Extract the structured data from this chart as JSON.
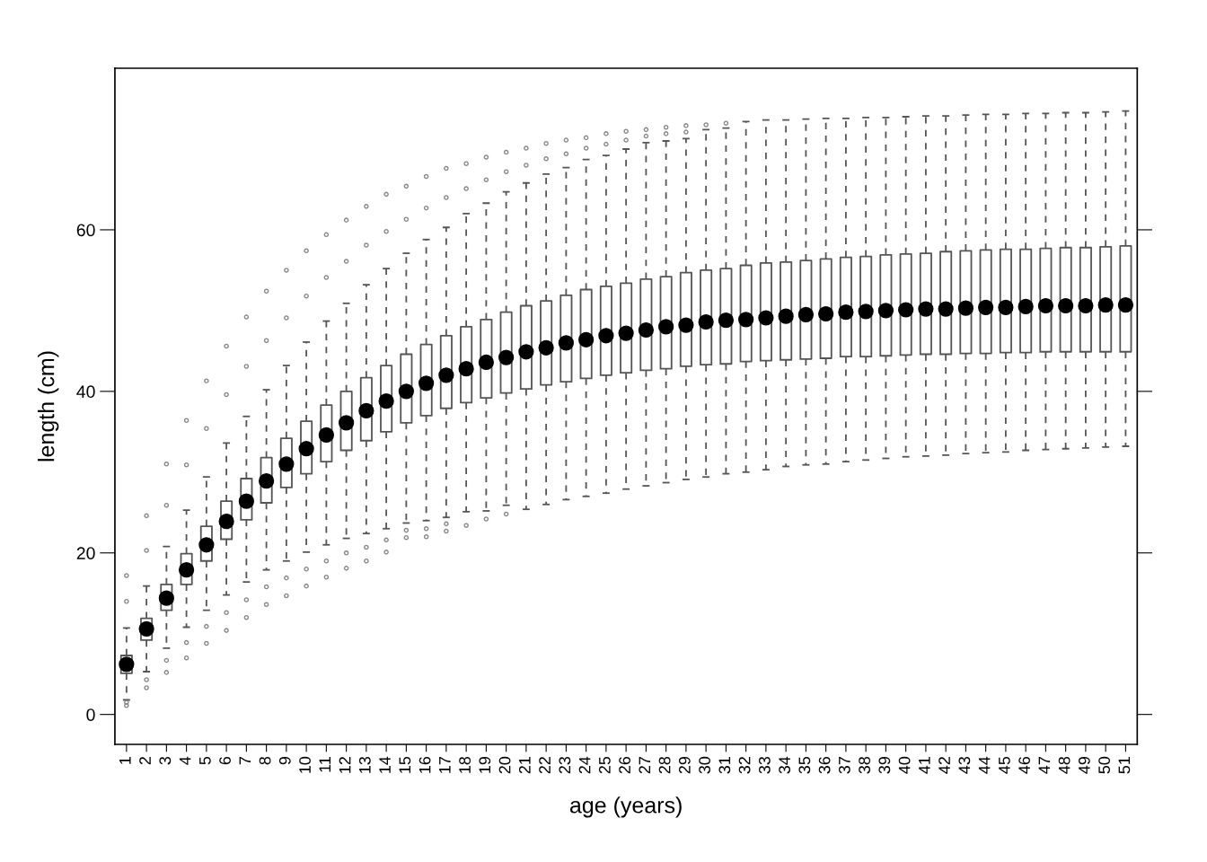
{
  "chart_data": {
    "type": "box",
    "xlabel": "age (years)",
    "ylabel": "length (cm)",
    "categories": [
      "1",
      "2",
      "3",
      "4",
      "5",
      "6",
      "7",
      "8",
      "9",
      "10",
      "11",
      "12",
      "13",
      "14",
      "15",
      "16",
      "17",
      "18",
      "19",
      "20",
      "21",
      "22",
      "23",
      "24",
      "25",
      "26",
      "27",
      "28",
      "29",
      "30",
      "31",
      "32",
      "33",
      "34",
      "35",
      "36",
      "37",
      "38",
      "39",
      "40",
      "41",
      "42",
      "43",
      "44",
      "45",
      "46",
      "47",
      "48",
      "49",
      "50",
      "51"
    ],
    "ylim": [
      -3.7,
      80
    ],
    "yticks": [
      0,
      20,
      40,
      60
    ],
    "grid": false,
    "series": [
      {
        "color": "#555555",
        "boxes": [
          {
            "low": 1.8,
            "q1": 5.1,
            "median": 6.2,
            "q3": 7.3,
            "high": 10.7,
            "outliers": [
              14.0,
              17.2,
              1.5,
              1.1
            ]
          },
          {
            "low": 5.3,
            "q1": 9.2,
            "median": 10.6,
            "q3": 11.9,
            "high": 15.9,
            "outliers": [
              20.3,
              24.6,
              4.3,
              3.3
            ]
          },
          {
            "low": 8.2,
            "q1": 12.9,
            "median": 14.4,
            "q3": 16.1,
            "high": 20.8,
            "outliers": [
              25.9,
              31.0,
              6.7,
              5.2
            ]
          },
          {
            "low": 10.8,
            "q1": 16.1,
            "median": 17.9,
            "q3": 19.9,
            "high": 25.3,
            "outliers": [
              30.9,
              36.4,
              8.9,
              7.0
            ]
          },
          {
            "low": 12.9,
            "q1": 19.0,
            "median": 21.0,
            "q3": 23.3,
            "high": 29.4,
            "outliers": [
              35.4,
              41.3,
              10.9,
              8.8
            ]
          },
          {
            "low": 14.8,
            "q1": 21.7,
            "median": 23.9,
            "q3": 26.4,
            "high": 33.6,
            "outliers": [
              39.6,
              45.6,
              12.6,
              10.4
            ]
          },
          {
            "low": 16.4,
            "q1": 24.1,
            "median": 26.4,
            "q3": 29.2,
            "high": 36.9,
            "outliers": [
              43.1,
              49.2,
              14.2,
              12.0
            ]
          },
          {
            "low": 17.9,
            "q1": 26.2,
            "median": 28.9,
            "q3": 31.8,
            "high": 40.2,
            "outliers": [
              46.3,
              52.4,
              15.8,
              13.6
            ]
          },
          {
            "low": 19.0,
            "q1": 28.1,
            "median": 31.0,
            "q3": 34.2,
            "high": 43.2,
            "outliers": [
              49.1,
              55.0,
              16.9,
              14.7
            ]
          },
          {
            "low": 20.1,
            "q1": 29.8,
            "median": 32.9,
            "q3": 36.3,
            "high": 46.1,
            "outliers": [
              51.8,
              57.4,
              18.0,
              15.9
            ]
          },
          {
            "low": 21.0,
            "q1": 31.3,
            "median": 34.6,
            "q3": 38.3,
            "high": 48.7,
            "outliers": [
              54.1,
              59.4,
              19.0,
              17.0
            ]
          },
          {
            "low": 21.8,
            "q1": 32.7,
            "median": 36.1,
            "q3": 40.0,
            "high": 50.9,
            "outliers": [
              56.1,
              61.2,
              20.0,
              18.1
            ]
          },
          {
            "low": 22.4,
            "q1": 33.9,
            "median": 37.6,
            "q3": 41.7,
            "high": 53.2,
            "outliers": [
              58.1,
              62.9,
              20.7,
              19.0
            ]
          },
          {
            "low": 23.0,
            "q1": 35.0,
            "median": 38.8,
            "q3": 43.2,
            "high": 55.2,
            "outliers": [
              59.8,
              64.4,
              21.6,
              20.1
            ]
          },
          {
            "low": 23.7,
            "q1": 36.1,
            "median": 40.0,
            "q3": 44.6,
            "high": 57.1,
            "outliers": [
              61.3,
              65.4,
              22.8,
              21.9
            ]
          },
          {
            "low": 24.0,
            "q1": 37.0,
            "median": 41.0,
            "q3": 45.8,
            "high": 58.8,
            "outliers": [
              62.7,
              66.6,
              23.0,
              22.0
            ]
          },
          {
            "low": 24.4,
            "q1": 37.9,
            "median": 42.0,
            "q3": 46.9,
            "high": 60.3,
            "outliers": [
              64.0,
              67.6,
              23.6,
              22.7
            ]
          },
          {
            "low": 25.1,
            "q1": 38.6,
            "median": 42.8,
            "q3": 48.0,
            "high": 62.0,
            "outliers": [
              65.1,
              68.2,
              23.4
            ]
          },
          {
            "low": 25.2,
            "q1": 39.2,
            "median": 43.6,
            "q3": 48.9,
            "high": 63.3,
            "outliers": [
              66.2,
              69.0,
              24.2
            ]
          },
          {
            "low": 25.9,
            "q1": 39.8,
            "median": 44.2,
            "q3": 49.8,
            "high": 64.7,
            "outliers": [
              67.2,
              69.6,
              24.8
            ]
          },
          {
            "low": 25.4,
            "q1": 40.3,
            "median": 44.9,
            "q3": 50.6,
            "high": 65.8,
            "outliers": [
              68.0,
              70.1
            ]
          },
          {
            "low": 26.0,
            "q1": 40.8,
            "median": 45.4,
            "q3": 51.2,
            "high": 66.9,
            "outliers": [
              68.8,
              70.7
            ]
          },
          {
            "low": 26.6,
            "q1": 41.2,
            "median": 46.0,
            "q3": 51.9,
            "high": 67.7,
            "outliers": [
              69.4,
              71.1
            ]
          },
          {
            "low": 27.0,
            "q1": 41.6,
            "median": 46.4,
            "q3": 52.6,
            "high": 68.7,
            "outliers": [
              70.1,
              71.4
            ]
          },
          {
            "low": 27.4,
            "q1": 42.0,
            "median": 46.9,
            "q3": 53.0,
            "high": 69.2,
            "outliers": [
              70.6,
              71.9
            ]
          },
          {
            "low": 27.9,
            "q1": 42.3,
            "median": 47.2,
            "q3": 53.4,
            "high": 70.0,
            "outliers": [
              71.1,
              72.2
            ]
          },
          {
            "low": 28.3,
            "q1": 42.6,
            "median": 47.6,
            "q3": 53.9,
            "high": 70.8,
            "outliers": [
              71.6,
              72.4
            ]
          },
          {
            "low": 28.7,
            "q1": 42.8,
            "median": 48.0,
            "q3": 54.2,
            "high": 71.0,
            "outliers": [
              71.9,
              72.7
            ]
          },
          {
            "low": 29.1,
            "q1": 43.1,
            "median": 48.2,
            "q3": 54.7,
            "high": 71.3,
            "outliers": [
              72.1,
              72.9
            ]
          },
          {
            "low": 29.4,
            "q1": 43.3,
            "median": 48.6,
            "q3": 55.0,
            "high": 72.4,
            "outliers": [
              73.0
            ]
          },
          {
            "low": 29.8,
            "q1": 43.4,
            "median": 48.8,
            "q3": 55.2,
            "high": 72.6,
            "outliers": [
              73.2
            ]
          },
          {
            "low": 30.0,
            "q1": 43.7,
            "median": 48.9,
            "q3": 55.6,
            "high": 73.4
          },
          {
            "low": 30.3,
            "q1": 43.8,
            "median": 49.1,
            "q3": 55.9,
            "high": 73.6
          },
          {
            "low": 30.7,
            "q1": 43.9,
            "median": 49.3,
            "q3": 56.0,
            "high": 73.6
          },
          {
            "low": 30.9,
            "q1": 44.0,
            "median": 49.5,
            "q3": 56.2,
            "high": 73.7
          },
          {
            "low": 31.0,
            "q1": 44.1,
            "median": 49.6,
            "q3": 56.4,
            "high": 73.8
          },
          {
            "low": 31.3,
            "q1": 44.3,
            "median": 49.8,
            "q3": 56.6,
            "high": 73.8
          },
          {
            "low": 31.5,
            "q1": 44.3,
            "median": 49.9,
            "q3": 56.7,
            "high": 73.9
          },
          {
            "low": 31.7,
            "q1": 44.4,
            "median": 50.0,
            "q3": 56.9,
            "high": 73.9
          },
          {
            "low": 31.9,
            "q1": 44.5,
            "median": 50.1,
            "q3": 57.0,
            "high": 74.0
          },
          {
            "low": 32.0,
            "q1": 44.6,
            "median": 50.2,
            "q3": 57.1,
            "high": 74.1
          },
          {
            "low": 32.1,
            "q1": 44.6,
            "median": 50.2,
            "q3": 57.3,
            "high": 74.1
          },
          {
            "low": 32.3,
            "q1": 44.7,
            "median": 50.3,
            "q3": 57.4,
            "high": 74.2
          },
          {
            "low": 32.4,
            "q1": 44.7,
            "median": 50.4,
            "q3": 57.5,
            "high": 74.3
          },
          {
            "low": 32.5,
            "q1": 44.8,
            "median": 50.4,
            "q3": 57.6,
            "high": 74.3
          },
          {
            "low": 32.7,
            "q1": 44.8,
            "median": 50.5,
            "q3": 57.6,
            "high": 74.4
          },
          {
            "low": 32.8,
            "q1": 44.9,
            "median": 50.6,
            "q3": 57.7,
            "high": 74.4
          },
          {
            "low": 32.9,
            "q1": 44.9,
            "median": 50.6,
            "q3": 57.8,
            "high": 74.5
          },
          {
            "low": 33.0,
            "q1": 44.9,
            "median": 50.6,
            "q3": 57.8,
            "high": 74.5
          },
          {
            "low": 33.1,
            "q1": 44.9,
            "median": 50.7,
            "q3": 57.9,
            "high": 74.6
          },
          {
            "low": 33.2,
            "q1": 44.9,
            "median": 50.7,
            "q3": 58.0,
            "high": 74.7
          }
        ]
      }
    ]
  }
}
